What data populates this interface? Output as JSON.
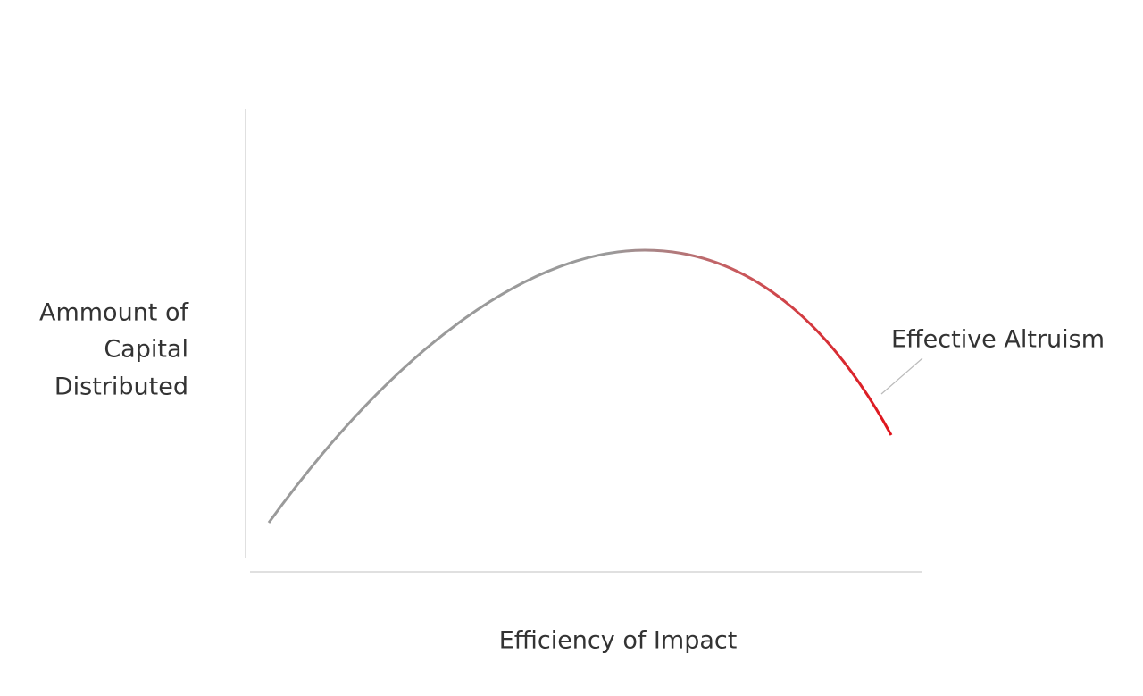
{
  "y_axis_label": [
    "Ammount of",
    "Capital",
    "Distributed"
  ],
  "x_axis_label": "Efficiency of Impact",
  "annotation": "Effective Altruism"
}
